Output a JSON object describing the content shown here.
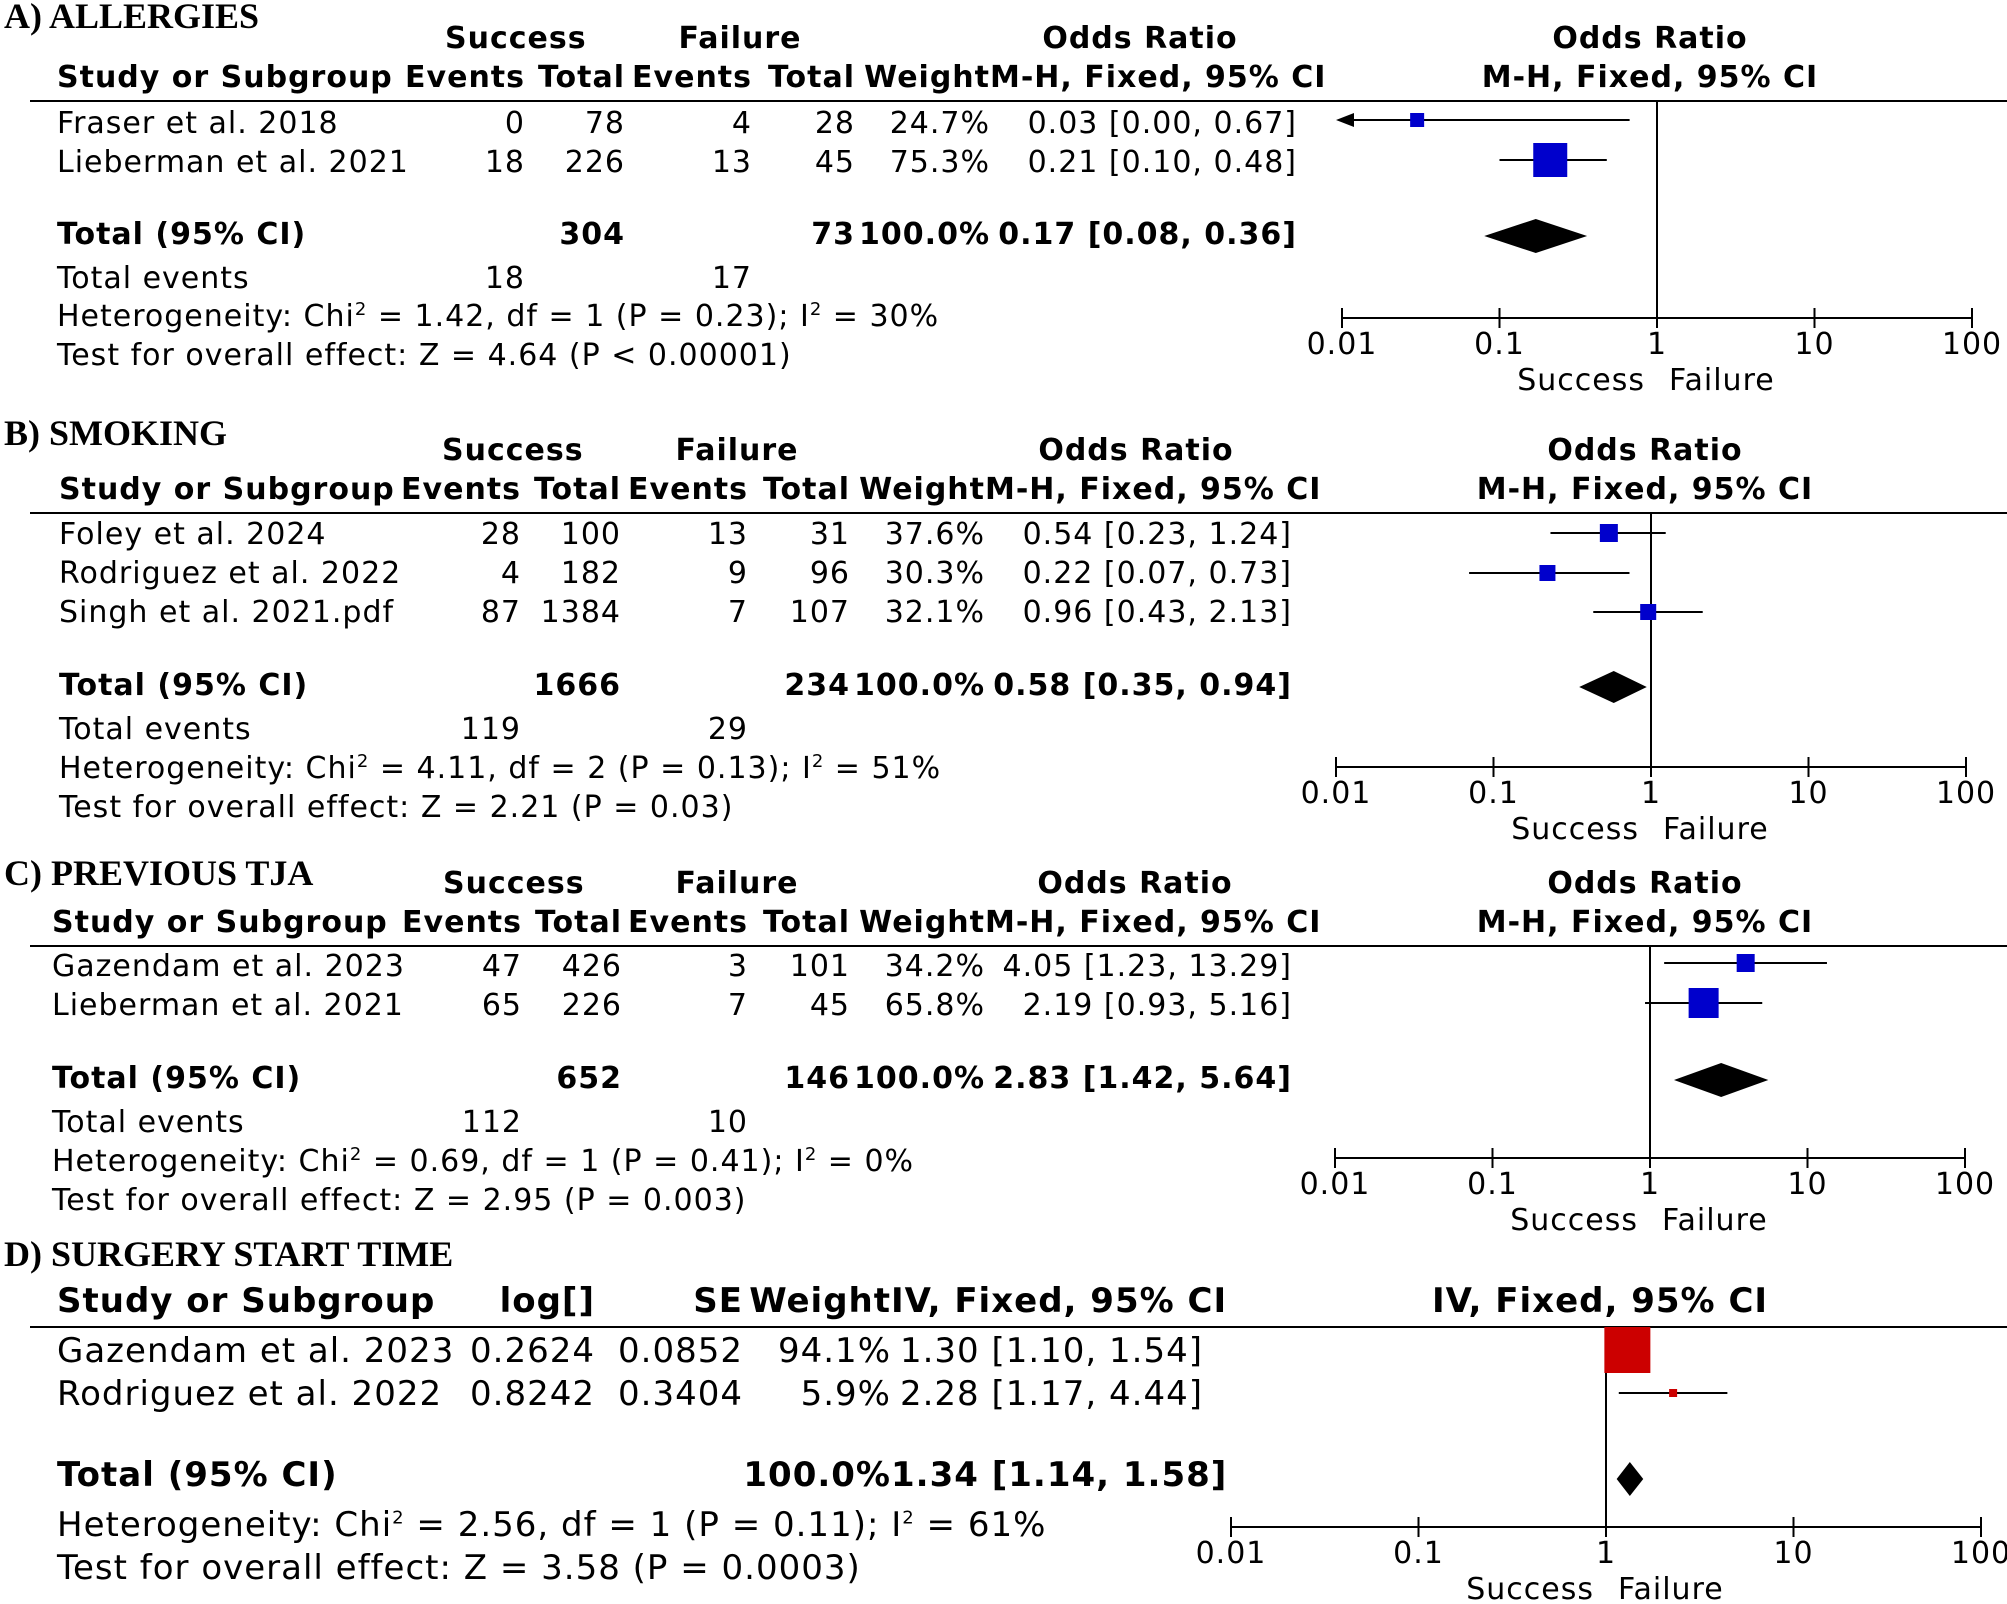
{
  "colors": {
    "marker_blue": "#0000cc",
    "marker_red": "#cc0000",
    "ink": "#000000"
  },
  "headers": {
    "success": "Success",
    "failure": "Failure",
    "odds_ratio": "Odds Ratio",
    "study": "Study or Subgroup",
    "events": "Events",
    "total": "Total",
    "weight": "Weight",
    "method_mh": "M-H, Fixed, 95% CI",
    "method_iv": "IV, Fixed, 95% CI",
    "log": "log[]",
    "se": "SE",
    "axis_left": "Success",
    "axis_right": "Failure"
  },
  "chart_data": [
    {
      "type": "forest",
      "title": "A) ALLERGIES",
      "scale": "log",
      "xlim": [
        0.01,
        100
      ],
      "ticks": [
        "0.01",
        "0.1",
        "1",
        "10",
        "100"
      ],
      "studies": [
        {
          "name": "Fraser et al. 2018",
          "s_events": "0",
          "s_total": "78",
          "f_events": "4",
          "f_total": "28",
          "weight": "24.7%",
          "ci_text": "0.03 [0.00, 0.67]",
          "or": 0.03,
          "lo": 0.0,
          "hi": 0.67
        },
        {
          "name": "Lieberman et al. 2021",
          "s_events": "18",
          "s_total": "226",
          "f_events": "13",
          "f_total": "45",
          "weight": "75.3%",
          "ci_text": "0.21 [0.10, 0.48]",
          "or": 0.21,
          "lo": 0.1,
          "hi": 0.48
        }
      ],
      "total": {
        "label": "Total (95% CI)",
        "s_total": "304",
        "f_total": "73",
        "weight": "100.0%",
        "ci_text": "0.17 [0.08, 0.36]",
        "or": 0.17,
        "lo": 0.08,
        "hi": 0.36
      },
      "events": {
        "label": "Total events",
        "s": "18",
        "f": "17"
      },
      "heterogeneity": {
        "pre": "Heterogeneity: Chi",
        "post": " = 1.42, df = 1 (P = 0.23); I",
        "end": " = 30%"
      },
      "overall": "Test for overall effect: Z = 4.64 (P < 0.00001)"
    },
    {
      "type": "forest",
      "title": "B) SMOKING",
      "scale": "log",
      "xlim": [
        0.01,
        100
      ],
      "ticks": [
        "0.01",
        "0.1",
        "1",
        "10",
        "100"
      ],
      "studies": [
        {
          "name": "Foley et al. 2024",
          "s_events": "28",
          "s_total": "100",
          "f_events": "13",
          "f_total": "31",
          "weight": "37.6%",
          "ci_text": "0.54 [0.23, 1.24]",
          "or": 0.54,
          "lo": 0.23,
          "hi": 1.24
        },
        {
          "name": "Rodriguez et al. 2022",
          "s_events": "4",
          "s_total": "182",
          "f_events": "9",
          "f_total": "96",
          "weight": "30.3%",
          "ci_text": "0.22 [0.07, 0.73]",
          "or": 0.22,
          "lo": 0.07,
          "hi": 0.73
        },
        {
          "name": "Singh et al. 2021.pdf",
          "s_events": "87",
          "s_total": "1384",
          "f_events": "7",
          "f_total": "107",
          "weight": "32.1%",
          "ci_text": "0.96 [0.43, 2.13]",
          "or": 0.96,
          "lo": 0.43,
          "hi": 2.13
        }
      ],
      "total": {
        "label": "Total (95% CI)",
        "s_total": "1666",
        "f_total": "234",
        "weight": "100.0%",
        "ci_text": "0.58 [0.35, 0.94]",
        "or": 0.58,
        "lo": 0.35,
        "hi": 0.94
      },
      "events": {
        "label": "Total events",
        "s": "119",
        "f": "29"
      },
      "heterogeneity": {
        "pre": "Heterogeneity: Chi",
        "post": " = 4.11, df = 2 (P = 0.13); I",
        "end": " = 51%"
      },
      "overall": "Test for overall effect: Z = 2.21 (P = 0.03)"
    },
    {
      "type": "forest",
      "title": "C) PREVIOUS TJA",
      "scale": "log",
      "xlim": [
        0.01,
        100
      ],
      "ticks": [
        "0.01",
        "0.1",
        "1",
        "10",
        "100"
      ],
      "studies": [
        {
          "name": "Gazendam et al. 2023",
          "s_events": "47",
          "s_total": "426",
          "f_events": "3",
          "f_total": "101",
          "weight": "34.2%",
          "ci_text": "4.05 [1.23, 13.29]",
          "or": 4.05,
          "lo": 1.23,
          "hi": 13.29
        },
        {
          "name": "Lieberman et al. 2021",
          "s_events": "65",
          "s_total": "226",
          "f_events": "7",
          "f_total": "45",
          "weight": "65.8%",
          "ci_text": "2.19 [0.93, 5.16]",
          "or": 2.19,
          "lo": 0.93,
          "hi": 5.16
        }
      ],
      "total": {
        "label": "Total (95% CI)",
        "s_total": "652",
        "f_total": "146",
        "weight": "100.0%",
        "ci_text": "2.83 [1.42, 5.64]",
        "or": 2.83,
        "lo": 1.42,
        "hi": 5.64
      },
      "events": {
        "label": "Total events",
        "s": "112",
        "f": "10"
      },
      "heterogeneity": {
        "pre": "Heterogeneity: Chi",
        "post": " = 0.69, df = 1 (P = 0.41); I",
        "end": " = 0%"
      },
      "overall": "Test for overall effect: Z = 2.95 (P = 0.003)"
    },
    {
      "type": "forest",
      "title": "D) SURGERY START TIME",
      "scale": "log",
      "xlim": [
        0.01,
        100
      ],
      "ticks": [
        "0.01",
        "0.1",
        "1",
        "10",
        "100"
      ],
      "studies": [
        {
          "name": "Gazendam et al. 2023",
          "log": "0.2624",
          "se": "0.0852",
          "weight": "94.1%",
          "ci_text": "1.30 [1.10, 1.54]",
          "or": 1.3,
          "lo": 1.1,
          "hi": 1.54
        },
        {
          "name": "Rodriguez et al. 2022",
          "log": "0.8242",
          "se": "0.3404",
          "weight": "5.9%",
          "ci_text": "2.28 [1.17, 4.44]",
          "or": 2.28,
          "lo": 1.17,
          "hi": 4.44
        }
      ],
      "total": {
        "label": "Total (95% CI)",
        "weight": "100.0%",
        "ci_text": "1.34 [1.14, 1.58]",
        "or": 1.34,
        "lo": 1.14,
        "hi": 1.58
      },
      "heterogeneity": {
        "pre": "Heterogeneity: Chi",
        "post": " = 2.56, df = 1 (P = 0.11); I",
        "end": " = 61%"
      },
      "overall": "Test for overall effect: Z = 3.58 (P = 0.0003)"
    }
  ]
}
